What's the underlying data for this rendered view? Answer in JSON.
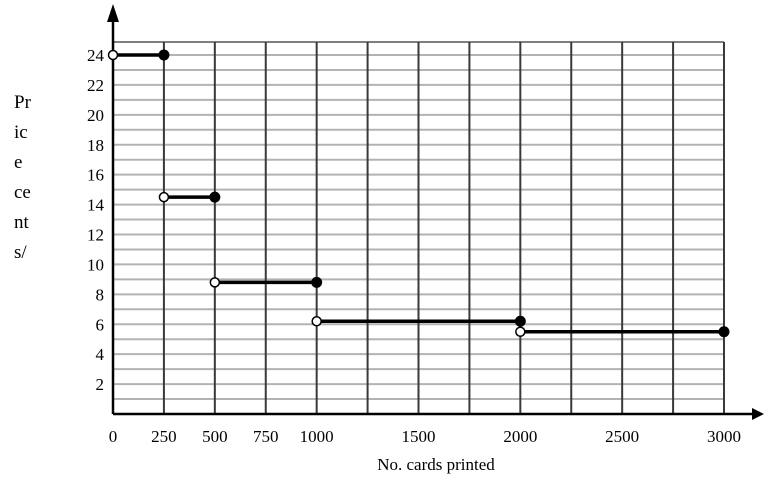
{
  "chart_data": {
    "type": "line",
    "title": "",
    "xlabel": "No. cards printed",
    "ylabel": [
      "Pr",
      "ic",
      "e",
      "ce",
      "nt",
      "s/"
    ],
    "xlim": [
      0,
      3000
    ],
    "ylim": [
      0,
      24
    ],
    "x_tick_labels": [
      {
        "v": 0,
        "label": "0"
      },
      {
        "v": 250,
        "label": "250"
      },
      {
        "v": 500,
        "label": "500"
      },
      {
        "v": 750,
        "label": "750"
      },
      {
        "v": 1000,
        "label": "1000"
      },
      {
        "v": 1500,
        "label": "1500"
      },
      {
        "v": 2000,
        "label": "2000"
      },
      {
        "v": 2500,
        "label": "2500"
      },
      {
        "v": 3000,
        "label": "3000"
      }
    ],
    "y_tick_labels": [
      2,
      4,
      6,
      8,
      10,
      12,
      14,
      16,
      18,
      20,
      22,
      24
    ],
    "grid": true,
    "series": [
      {
        "segments": [
          {
            "x_start": 0,
            "x_end": 250,
            "y": 24,
            "start": "open",
            "end": "closed"
          },
          {
            "x_start": 250,
            "x_end": 500,
            "y": 14.5,
            "start": "open",
            "end": "closed"
          },
          {
            "x_start": 500,
            "x_end": 1000,
            "y": 8.8,
            "start": "open",
            "end": "closed"
          },
          {
            "x_start": 1000,
            "x_end": 2000,
            "y": 6.2,
            "start": "open",
            "end": "closed"
          },
          {
            "x_start": 2000,
            "x_end": 3000,
            "y": 5.5,
            "start": "open",
            "end": "closed"
          }
        ]
      }
    ],
    "colors": {
      "grid_horizontal": "#b3b3b3",
      "grid_vertical": "#3a3a3a",
      "line": "#000000"
    }
  }
}
